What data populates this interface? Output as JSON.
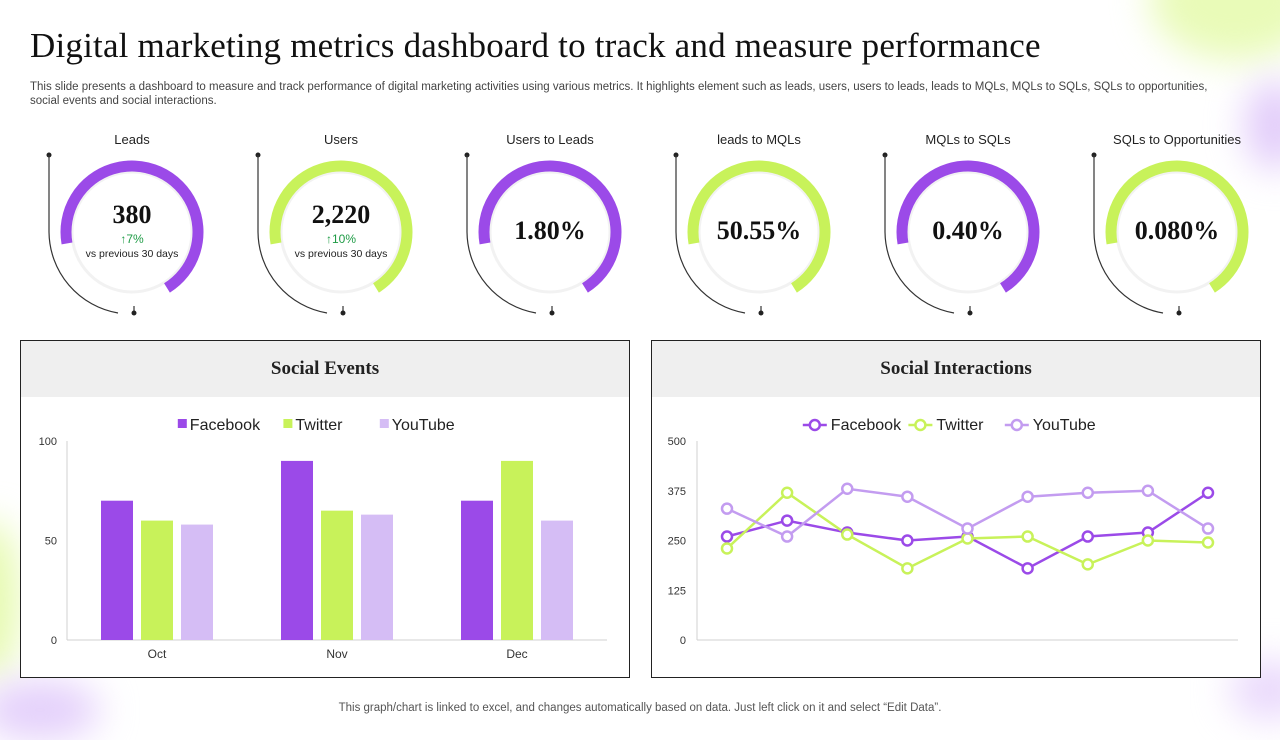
{
  "title": "Digital marketing metrics dashboard to track and measure performance",
  "subtitle": "This slide presents a dashboard to measure and track performance of digital marketing activities using various metrics. It highlights element such as leads, users, users to leads, leads to MQLs, MQLs to SQLs, SQLs to opportunities, social events and social interactions.",
  "footnote": "This graph/chart is linked to excel,  and changes automatically based on data. Just left click on it and select “Edit Data”.",
  "colors": {
    "purple": "#9b4ae8",
    "green": "#c8f25a",
    "lavender": "#d5bdf5",
    "up": "#1e9b45"
  },
  "kpis": [
    {
      "label": "Leads",
      "value": "380",
      "change": "7%",
      "note": "vs previous 30 days",
      "color": "#9b4ae8"
    },
    {
      "label": "Users",
      "value": "2,220",
      "change": "10%",
      "note": "vs previous 30 days",
      "color": "#c8f25a"
    },
    {
      "label": "Users to Leads",
      "value": "1.80%",
      "color": "#9b4ae8"
    },
    {
      "label": "leads to MQLs",
      "value": "50.55%",
      "color": "#c8f25a"
    },
    {
      "label": "MQLs to SQLs",
      "value": "0.40%",
      "color": "#9b4ae8"
    },
    {
      "label": "SQLs to Opportunities",
      "value": "0.080%",
      "color": "#c8f25a"
    }
  ],
  "chart_data": [
    {
      "type": "bar",
      "title": "Social Events",
      "categories": [
        "Oct",
        "Nov",
        "Dec"
      ],
      "series": [
        {
          "name": "Facebook",
          "values": [
            70,
            90,
            70
          ],
          "color": "#9b4ae8"
        },
        {
          "name": "Twitter",
          "values": [
            60,
            65,
            90
          ],
          "color": "#c8f25a"
        },
        {
          "name": "YouTube",
          "values": [
            58,
            63,
            60
          ],
          "color": "#d5bdf5"
        }
      ],
      "ylim": [
        0,
        100
      ],
      "yticks": [
        0,
        50,
        100
      ],
      "legend": "top",
      "grid": false
    },
    {
      "type": "line",
      "title": "Social Interactions",
      "x": [
        1,
        2,
        3,
        4,
        5,
        6,
        7,
        8,
        9
      ],
      "series": [
        {
          "name": "Facebook",
          "values": [
            260,
            300,
            270,
            250,
            260,
            180,
            260,
            270,
            370
          ],
          "color": "#9b4ae8"
        },
        {
          "name": "Twitter",
          "values": [
            230,
            370,
            265,
            180,
            255,
            260,
            190,
            250,
            245
          ],
          "color": "#c8f25a"
        },
        {
          "name": "YouTube",
          "values": [
            330,
            260,
            380,
            360,
            280,
            360,
            370,
            375,
            280
          ],
          "color": "#c39cf0"
        }
      ],
      "ylim": [
        0,
        500
      ],
      "yticks": [
        0,
        125,
        250,
        375,
        500
      ],
      "legend": "top",
      "grid": false
    }
  ]
}
